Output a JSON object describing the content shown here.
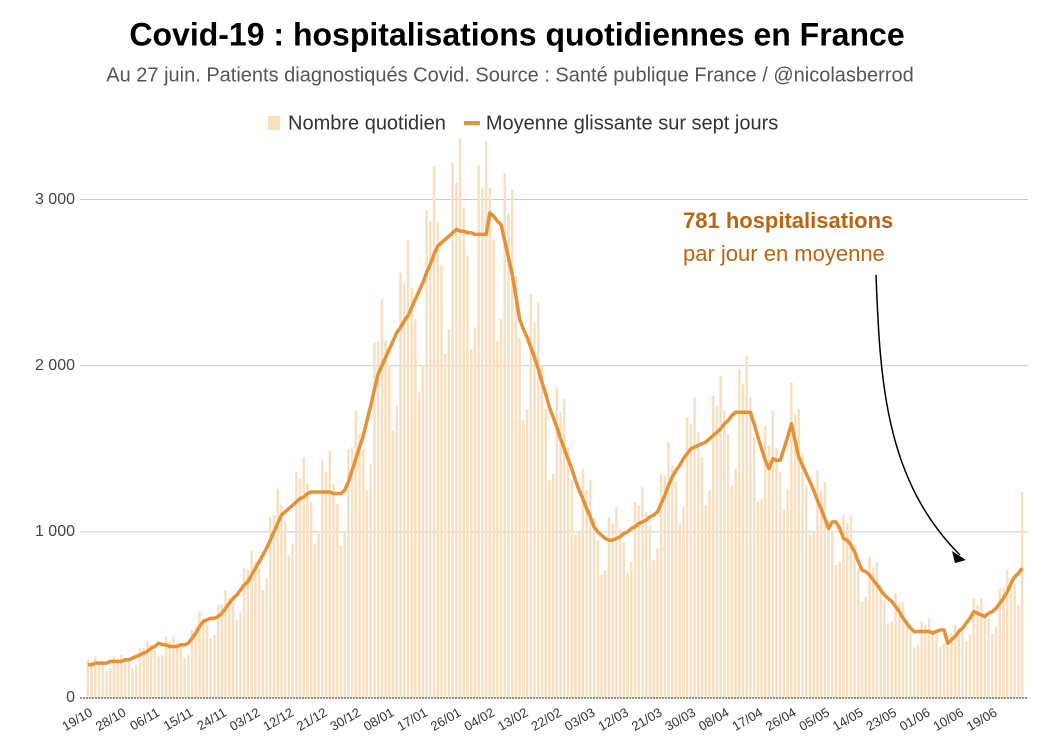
{
  "chart_data": {
    "type": "bar_line",
    "title": "Covid-19 : hospitalisations quotidiennes en France",
    "subtitle": "Au 27 juin. Patients diagnostiqués Covid. Source : Santé publique France / @nicolasberrod",
    "annotation": {
      "title": "781 hospitalisations",
      "text": "par jour en moyenne"
    },
    "categories": [
      "19/10",
      null,
      null,
      null,
      null,
      null,
      null,
      null,
      null,
      "28/10",
      null,
      null,
      null,
      null,
      null,
      null,
      null,
      null,
      "06/11",
      null,
      null,
      null,
      null,
      null,
      null,
      null,
      null,
      "15/11",
      null,
      null,
      null,
      null,
      null,
      null,
      null,
      null,
      "24/11",
      null,
      null,
      null,
      null,
      null,
      null,
      null,
      null,
      "03/12",
      null,
      null,
      null,
      null,
      null,
      null,
      null,
      null,
      "12/12",
      null,
      null,
      null,
      null,
      null,
      null,
      null,
      null,
      "21/12",
      null,
      null,
      null,
      null,
      null,
      null,
      null,
      null,
      "30/12",
      null,
      null,
      null,
      null,
      null,
      null,
      null,
      null,
      "08/01",
      null,
      null,
      null,
      null,
      null,
      null,
      null,
      null,
      "17/01",
      null,
      null,
      null,
      null,
      null,
      null,
      null,
      null,
      "26/01",
      null,
      null,
      null,
      null,
      null,
      null,
      null,
      null,
      "04/02",
      null,
      null,
      null,
      null,
      null,
      null,
      null,
      null,
      "13/02",
      null,
      null,
      null,
      null,
      null,
      null,
      null,
      null,
      "22/02",
      null,
      null,
      null,
      null,
      null,
      null,
      null,
      null,
      "03/03",
      null,
      null,
      null,
      null,
      null,
      null,
      null,
      null,
      "12/03",
      null,
      null,
      null,
      null,
      null,
      null,
      null,
      null,
      "21/03",
      null,
      null,
      null,
      null,
      null,
      null,
      null,
      null,
      "30/03",
      null,
      null,
      null,
      null,
      null,
      null,
      null,
      null,
      "08/04",
      null,
      null,
      null,
      null,
      null,
      null,
      null,
      null,
      "17/04",
      null,
      null,
      null,
      null,
      null,
      null,
      null,
      null,
      "26/04",
      null,
      null,
      null,
      null,
      null,
      null,
      null,
      null,
      "05/05",
      null,
      null,
      null,
      null,
      null,
      null,
      null,
      null,
      "14/05",
      null,
      null,
      null,
      null,
      null,
      null,
      null,
      null,
      "23/05",
      null,
      null,
      null,
      null,
      null,
      null,
      null,
      null,
      "01/06",
      null,
      null,
      null,
      null,
      null,
      null,
      null,
      null,
      "10/06",
      null,
      null,
      null,
      null,
      null,
      null,
      null,
      null,
      "19/06",
      null,
      null,
      null,
      null,
      null,
      null,
      null,
      null
    ],
    "series": [
      {
        "name": "Nombre quotidien",
        "kind": "bar",
        "color": "#f8dfbf",
        "values": [
          230,
          220,
          250,
          220,
          200,
          160,
          180,
          250,
          240,
          260,
          240,
          220,
          180,
          200,
          300,
          300,
          340,
          320,
          290,
          250,
          260,
          370,
          340,
          370,
          330,
          300,
          240,
          260,
          410,
          430,
          520,
          480,
          450,
          360,
          380,
          560,
          560,
          650,
          600,
          570,
          470,
          520,
          780,
          770,
          890,
          820,
          780,
          650,
          720,
          1090,
          1100,
          1260,
          1160,
          1060,
          860,
          930,
          1360,
          1320,
          1450,
          1290,
          1180,
          930,
          990,
          1430,
          1360,
          1490,
          1290,
          1170,
          920,
          1000,
          1500,
          1510,
          1730,
          1590,
          1500,
          1250,
          1410,
          2140,
          2150,
          2400,
          2150,
          2000,
          1610,
          1760,
          2560,
          2500,
          2760,
          2470,
          2280,
          1840,
          2000,
          2940,
          2870,
          3200,
          2860,
          2600,
          2070,
          2220,
          3220,
          3100,
          3370,
          2950,
          2660,
          2100,
          2230,
          3210,
          3070,
          3350,
          3070,
          2760,
          2150,
          2280,
          3160,
          2920,
          3060,
          2540,
          2170,
          1670,
          1740,
          2430,
          2260,
          2380,
          2000,
          1740,
          1310,
          1350,
          1870,
          1720,
          1800,
          1510,
          1310,
          980,
          1000,
          1380,
          1250,
          1310,
          1080,
          950,
          740,
          770,
          1090,
          1050,
          1150,
          1020,
          940,
          750,
          820,
          1180,
          1160,
          1270,
          1120,
          1040,
          830,
          900,
          1350,
          1340,
          1540,
          1400,
          1300,
          1050,
          1150,
          1690,
          1650,
          1810,
          1600,
          1450,
          1160,
          1250,
          1820,
          1760,
          1940,
          1730,
          1590,
          1280,
          1380,
          1980,
          1890,
          2060,
          1810,
          1570,
          1180,
          1200,
          1640,
          1520,
          1730,
          1500,
          1360,
          1130,
          1260,
          1900,
          1710,
          1740,
          1470,
          1280,
          980,
          1000,
          1370,
          1250,
          1300,
          1070,
          1010,
          800,
          820,
          1100,
          1050,
          1100,
          920,
          780,
          580,
          610,
          850,
          780,
          820,
          680,
          590,
          450,
          460,
          630,
          570,
          580,
          470,
          400,
          300,
          320,
          460,
          440,
          480,
          410,
          380,
          310,
          330,
          380,
          390,
          440,
          420,
          400,
          340,
          380,
          600,
          560,
          600,
          510,
          480,
          390,
          430,
          660,
          660,
          770,
          720,
          690,
          560,
          1240
        ]
      },
      {
        "name": "Moyenne glissante sur sept jours",
        "kind": "line",
        "color": "#e69138",
        "values": [
          200,
          200,
          210,
          210,
          210,
          210,
          220,
          220,
          220,
          220,
          230,
          230,
          240,
          250,
          260,
          270,
          280,
          300,
          310,
          330,
          320,
          320,
          310,
          310,
          310,
          320,
          320,
          330,
          360,
          390,
          430,
          460,
          470,
          480,
          480,
          490,
          510,
          540,
          570,
          600,
          620,
          650,
          680,
          700,
          740,
          780,
          820,
          860,
          900,
          950,
          1000,
          1050,
          1100,
          1120,
          1140,
          1160,
          1180,
          1200,
          1210,
          1230,
          1240,
          1240,
          1240,
          1240,
          1240,
          1240,
          1230,
          1230,
          1230,
          1250,
          1300,
          1370,
          1440,
          1510,
          1580,
          1670,
          1760,
          1860,
          1950,
          2000,
          2050,
          2100,
          2150,
          2200,
          2230,
          2270,
          2300,
          2350,
          2400,
          2450,
          2500,
          2560,
          2610,
          2670,
          2720,
          2740,
          2760,
          2780,
          2800,
          2820,
          2810,
          2810,
          2800,
          2800,
          2790,
          2790,
          2790,
          2790,
          2920,
          2900,
          2870,
          2850,
          2750,
          2650,
          2550,
          2420,
          2280,
          2220,
          2170,
          2110,
          2050,
          1980,
          1900,
          1830,
          1750,
          1690,
          1630,
          1560,
          1500,
          1440,
          1380,
          1310,
          1250,
          1200,
          1140,
          1090,
          1030,
          1000,
          980,
          960,
          950,
          950,
          960,
          970,
          990,
          1000,
          1020,
          1030,
          1050,
          1060,
          1070,
          1090,
          1100,
          1120,
          1170,
          1220,
          1280,
          1330,
          1370,
          1400,
          1440,
          1470,
          1500,
          1510,
          1520,
          1530,
          1540,
          1560,
          1580,
          1600,
          1620,
          1650,
          1670,
          1700,
          1720,
          1720,
          1720,
          1720,
          1720,
          1650,
          1570,
          1500,
          1430,
          1380,
          1440,
          1430,
          1430,
          1500,
          1570,
          1650,
          1550,
          1450,
          1400,
          1350,
          1300,
          1250,
          1190,
          1140,
          1080,
          1020,
          1060,
          1060,
          1020,
          960,
          950,
          920,
          880,
          820,
          770,
          760,
          740,
          710,
          680,
          650,
          620,
          600,
          580,
          550,
          520,
          480,
          450,
          420,
          400,
          400,
          400,
          400,
          400,
          390,
          400,
          410,
          410,
          330,
          350,
          370,
          400,
          420,
          450,
          480,
          520,
          510,
          500,
          490,
          510,
          520,
          540,
          570,
          600,
          640,
          690,
          730,
          750,
          781
        ]
      }
    ],
    "ylim": [
      0,
      3900
    ],
    "yticks": [
      {
        "value": 0,
        "label": "0"
      },
      {
        "value": 1000,
        "label": "1 000"
      },
      {
        "value": 2000,
        "label": "2 000"
      },
      {
        "value": 3000,
        "label": "3 000"
      }
    ],
    "grid": true,
    "legend": "top"
  }
}
